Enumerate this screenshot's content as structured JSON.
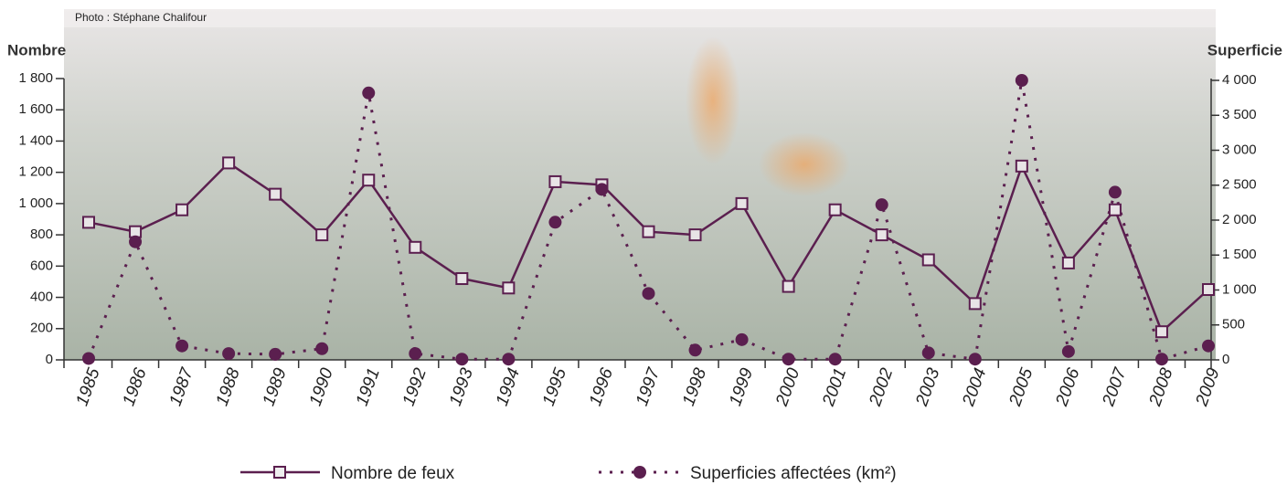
{
  "chart_data": {
    "type": "line",
    "annotation": "Photo : Stéphane Chalifour",
    "y_label": "Nombre",
    "y2_label": "Superficie",
    "categories": [
      "1985",
      "1986",
      "1987",
      "1988",
      "1989",
      "1990",
      "1991",
      "1992",
      "1993",
      "1994",
      "1995",
      "1996",
      "1997",
      "1998",
      "1999",
      "2000",
      "2001",
      "2002",
      "2003",
      "2004",
      "2005",
      "2006",
      "2007",
      "2008",
      "2009"
    ],
    "series": [
      {
        "name": "Nombre de feux",
        "color": "#5b1f4f",
        "marker": "square",
        "dash": "solid",
        "values": [
          880,
          820,
          960,
          1260,
          1060,
          800,
          1150,
          720,
          520,
          460,
          1140,
          1120,
          820,
          800,
          1000,
          470,
          960,
          800,
          640,
          360,
          1240,
          620,
          960,
          180,
          450
        ]
      },
      {
        "name": "Superficies affectées (km²)",
        "color": "#5b1f4f",
        "marker": "circle",
        "dash": "dotted",
        "axis": "y2",
        "values": [
          20,
          1690,
          200,
          90,
          80,
          160,
          3820,
          90,
          10,
          10,
          1970,
          2440,
          950,
          140,
          290,
          10,
          10,
          2220,
          100,
          10,
          4000,
          120,
          2400,
          10,
          200
        ]
      }
    ],
    "ylim": [
      0,
      1800
    ],
    "yticks": [
      0,
      200,
      400,
      600,
      800,
      {
        "value": 1000,
        "label": "1 000"
      },
      {
        "value": 1200,
        "label": "1 200"
      },
      {
        "value": 1400,
        "label": "1 400"
      },
      {
        "value": 1600,
        "label": "1 600"
      },
      {
        "value": 1800,
        "label": "1 800"
      }
    ],
    "y2lim": [
      0,
      4000
    ],
    "y2ticks": [
      0,
      500,
      {
        "value": 1000,
        "label": "1 000"
      },
      {
        "value": 1500,
        "label": "1 500"
      },
      {
        "value": 2000,
        "label": "2 000"
      },
      {
        "value": 2500,
        "label": "2 500"
      },
      {
        "value": 3000,
        "label": "3 000"
      },
      {
        "value": 3500,
        "label": "3 500"
      },
      {
        "value": 4000,
        "label": "4 000"
      }
    ]
  }
}
